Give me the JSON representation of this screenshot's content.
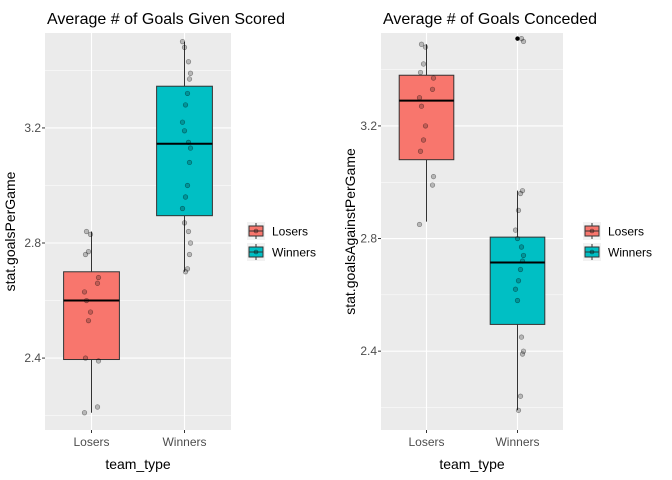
{
  "chart_data": [
    {
      "type": "boxplot",
      "title": "Average # of Goals Given Scored",
      "xlabel": "team_type",
      "ylabel": "stat.goalsPerGame",
      "categories": [
        "Losers",
        "Winners"
      ],
      "ylim": [
        2.15,
        3.53
      ],
      "yticks": [
        2.4,
        2.8,
        3.2
      ],
      "ytick_labels": [
        "2.4",
        "2.8",
        "3.2"
      ],
      "grid": true,
      "legend_position": "right",
      "legend": {
        "entries": [
          "Losers",
          "Winners"
        ]
      },
      "boxes": [
        {
          "category": "Losers",
          "fill": "#F8766D",
          "whisker_low": 2.21,
          "q1": 2.395,
          "median": 2.6,
          "q3": 2.7,
          "whisker_high": 2.84
        },
        {
          "category": "Winners",
          "fill": "#00BFC4",
          "whisker_low": 2.7,
          "q1": 2.895,
          "median": 3.145,
          "q3": 3.345,
          "whisker_high": 3.5
        }
      ],
      "points": {
        "Losers": [
          2.21,
          2.23,
          2.39,
          2.4,
          2.53,
          2.56,
          2.6,
          2.63,
          2.66,
          2.68,
          2.76,
          2.77,
          2.83,
          2.84
        ],
        "Winners": [
          2.7,
          2.71,
          2.76,
          2.8,
          2.84,
          2.87,
          2.92,
          2.96,
          3.0,
          3.08,
          3.13,
          3.15,
          3.19,
          3.22,
          3.28,
          3.32,
          3.37,
          3.39,
          3.43,
          3.48,
          3.5
        ]
      }
    },
    {
      "type": "boxplot",
      "title": "Average # of Goals Conceded",
      "xlabel": "team_type",
      "ylabel": "stat.goalsAgainstPerGame",
      "categories": [
        "Losers",
        "Winners"
      ],
      "ylim": [
        2.12,
        3.53
      ],
      "yticks": [
        2.4,
        2.8,
        3.2
      ],
      "ytick_labels": [
        "2.4",
        "2.8",
        "3.2"
      ],
      "grid": true,
      "legend_position": "right",
      "legend": {
        "entries": [
          "Losers",
          "Winners"
        ]
      },
      "boxes": [
        {
          "category": "Losers",
          "fill": "#F8766D",
          "whisker_low": 2.86,
          "q1": 3.08,
          "median": 3.29,
          "q3": 3.38,
          "whisker_high": 3.49
        },
        {
          "category": "Winners",
          "fill": "#00BFC4",
          "whisker_low": 2.19,
          "q1": 2.495,
          "median": 2.715,
          "q3": 2.805,
          "whisker_high": 2.97
        },
        {
          "category": "Winners",
          "outliers": [
            3.51
          ]
        }
      ],
      "points": {
        "Losers": [
          2.85,
          2.99,
          3.02,
          3.11,
          3.15,
          3.2,
          3.27,
          3.3,
          3.33,
          3.37,
          3.39,
          3.42,
          3.48,
          3.49
        ],
        "Winners": [
          2.19,
          2.24,
          2.39,
          2.4,
          2.45,
          2.58,
          2.62,
          2.65,
          2.69,
          2.72,
          2.74,
          2.77,
          2.8,
          2.83,
          2.9,
          2.96,
          2.97,
          3.5,
          3.51
        ]
      }
    }
  ]
}
